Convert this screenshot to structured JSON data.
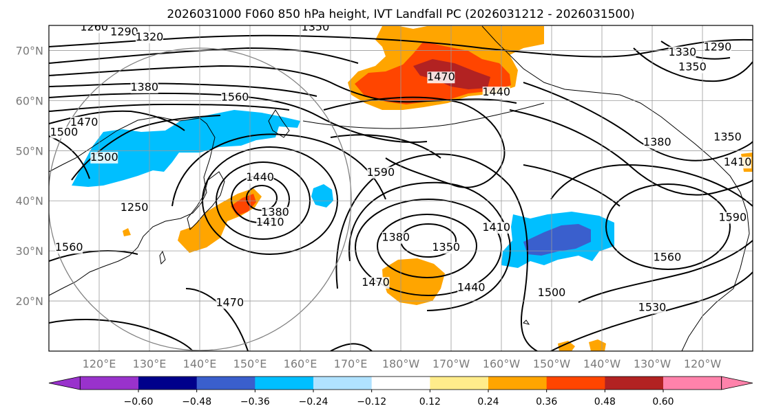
{
  "title": "2026031000 F060 850 hPa height, IVT Landfall PC (2026031212 - 2026031500)",
  "map": {
    "longitude_labels": [
      "120°E",
      "130°E",
      "140°E",
      "150°E",
      "160°E",
      "170°E",
      "180°W",
      "170°W",
      "160°W",
      "150°W",
      "140°W",
      "130°W",
      "120°W"
    ],
    "latitude_labels": [
      "70°N",
      "60°N",
      "50°N",
      "40°N",
      "30°N",
      "20°N"
    ],
    "lat_values": [
      70,
      60,
      50,
      40,
      30,
      20
    ],
    "lon_range": [
      110,
      250
    ],
    "lat_range": [
      10,
      75
    ],
    "grid": true,
    "circle_outline_color": "#808080"
  },
  "contour_labels": [
    {
      "text": "1260",
      "lon": 119,
      "lat": 74
    },
    {
      "text": "1290",
      "lon": 125,
      "lat": 73
    },
    {
      "text": "1320",
      "lon": 130,
      "lat": 72
    },
    {
      "text": "1350",
      "lon": 163,
      "lat": 74
    },
    {
      "text": "1380",
      "lon": 129,
      "lat": 62
    },
    {
      "text": "1470",
      "lon": 117,
      "lat": 55
    },
    {
      "text": "1500",
      "lon": 113,
      "lat": 53
    },
    {
      "text": "1500",
      "lon": 121,
      "lat": 48
    },
    {
      "text": "1560",
      "lon": 147,
      "lat": 60
    },
    {
      "text": "1440",
      "lon": 152,
      "lat": 44
    },
    {
      "text": "1380",
      "lon": 155,
      "lat": 37
    },
    {
      "text": "1410",
      "lon": 154,
      "lat": 35
    },
    {
      "text": "1250",
      "lon": 127,
      "lat": 38
    },
    {
      "text": "1560",
      "lon": 114,
      "lat": 30
    },
    {
      "text": "1590",
      "lon": 176,
      "lat": 45
    },
    {
      "text": "1470",
      "lon": 188,
      "lat": 64
    },
    {
      "text": "1440",
      "lon": 199,
      "lat": 61
    },
    {
      "text": "1380",
      "lon": 231,
      "lat": 51
    },
    {
      "text": "1330",
      "lon": 236,
      "lat": 69
    },
    {
      "text": "1350",
      "lon": 238,
      "lat": 66
    },
    {
      "text": "1290",
      "lon": 243,
      "lat": 70
    },
    {
      "text": "1350",
      "lon": 245,
      "lat": 52
    },
    {
      "text": "1410",
      "lon": 247,
      "lat": 47
    },
    {
      "text": "1410",
      "lon": 199,
      "lat": 34
    },
    {
      "text": "1380",
      "lon": 179,
      "lat": 32
    },
    {
      "text": "1350",
      "lon": 189,
      "lat": 30
    },
    {
      "text": "1470",
      "lon": 175,
      "lat": 23
    },
    {
      "text": "1440",
      "lon": 194,
      "lat": 22
    },
    {
      "text": "1500",
      "lon": 210,
      "lat": 21
    },
    {
      "text": "1560",
      "lon": 233,
      "lat": 28
    },
    {
      "text": "1590",
      "lon": 246,
      "lat": 36
    },
    {
      "text": "1530",
      "lon": 230,
      "lat": 18
    },
    {
      "text": "1470",
      "lon": 146,
      "lat": 19
    }
  ],
  "colorbar": {
    "tick_labels": [
      "−0.60",
      "−0.48",
      "−0.36",
      "−0.24",
      "−0.12",
      "0.12",
      "0.24",
      "0.36",
      "0.48",
      "0.60"
    ],
    "colors": [
      "#9932cc",
      "#00008b",
      "#3a5fcd",
      "#00bfff",
      "#b0e2ff",
      "#ffffff",
      "#ffec8b",
      "#ffa500",
      "#ff4500",
      "#b22222",
      "#ff82ab"
    ],
    "extend": "both"
  },
  "colors": {
    "positive_orange": "#ffa500",
    "positive_red": "#ff4500",
    "positive_darkred": "#b22222",
    "negative_lightblue": "#00bfff",
    "negative_blue": "#3a5fcd",
    "contour": "#000000"
  }
}
